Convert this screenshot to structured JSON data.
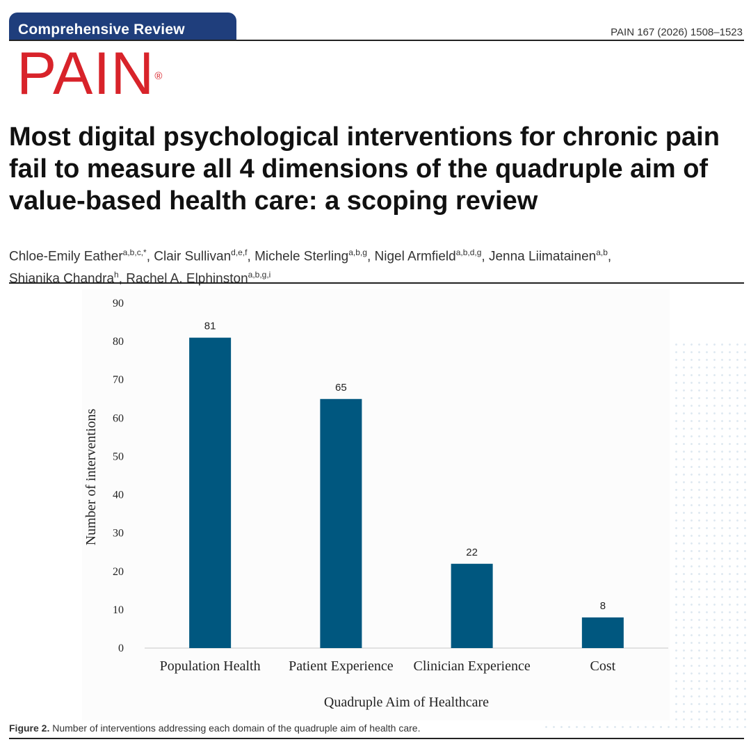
{
  "header": {
    "section_label": "Comprehensive Review",
    "citation": "PAIN 167 (2026) 1508–1523",
    "journal_logo": "PAIN",
    "registered_mark": "®"
  },
  "article": {
    "title": "Most digital psychological interventions for chronic pain fail to measure all 4 dimensions of the quadruple aim of value-based health care: a scoping review",
    "authors": [
      {
        "name": "Chloe-Emily Eather",
        "aff": "a,b,c,*",
        "sep": ", "
      },
      {
        "name": "Clair Sullivan",
        "aff": "d,e,f",
        "sep": ", "
      },
      {
        "name": "Michele Sterling",
        "aff": "a,b,g",
        "sep": ", "
      },
      {
        "name": "Nigel Armfield",
        "aff": "a,b,d,g",
        "sep": ", "
      },
      {
        "name": "Jenna Liimatainen",
        "aff": "a,b",
        "sep": ", "
      },
      {
        "name": "Shianika Chandra",
        "aff": "h",
        "sep": ", "
      },
      {
        "name": "Rachel A. Elphinston",
        "aff": "a,b,g,i",
        "sep": ""
      }
    ]
  },
  "figure": {
    "caption_label": "Figure 2.",
    "caption_text": " Number of interventions addressing each domain of the quadruple aim of health care."
  },
  "chart_data": {
    "type": "bar",
    "categories": [
      "Population Health",
      "Patient Experience",
      "Clinician Experience",
      "Cost"
    ],
    "values": [
      81,
      65,
      22,
      8
    ],
    "data_labels": [
      "81",
      "65",
      "22",
      "8"
    ],
    "xlabel": "Quadruple Aim of Healthcare",
    "ylabel": "Number of interventions",
    "ylim": [
      0,
      90
    ],
    "yticks": [
      0,
      10,
      20,
      30,
      40,
      50,
      60,
      70,
      80,
      90
    ],
    "grid": false,
    "legend": "none",
    "bar_color": "#00577f"
  }
}
